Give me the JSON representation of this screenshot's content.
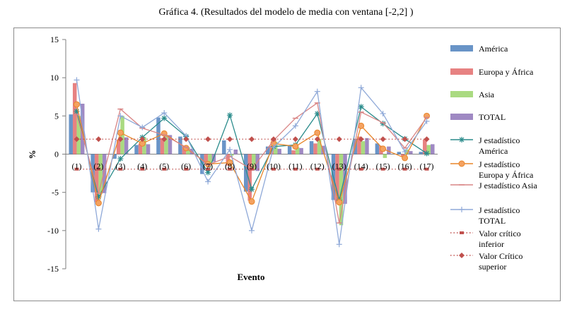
{
  "chart_data": {
    "type": "bar",
    "title": "Gráfica 4. (Resultados del modelo de media con ventana [-2,2] )",
    "xlabel": "Evento",
    "ylabel": "%",
    "ylim": [
      -15,
      15
    ],
    "yticks": [
      15,
      10,
      5,
      0,
      -5,
      -10,
      -15
    ],
    "grid": false,
    "legend": "right",
    "categories": [
      "(1)",
      "(2)",
      "(3)",
      "(4)",
      "(5)",
      "(6)",
      "(7)",
      "(8)",
      "(9)",
      "(10)",
      "(11)",
      "(12)",
      "(13)",
      "(14)",
      "(15)",
      "(16)",
      "(17)"
    ],
    "series": [
      {
        "name": "América",
        "kind": "bar",
        "color": "#4f81bd",
        "values": [
          5.2,
          -5.0,
          -0.6,
          1.2,
          4.8,
          2.3,
          -2.6,
          1.8,
          -4.9,
          1.0,
          1.1,
          1.7,
          -6.0,
          2.0,
          1.4,
          0.3,
          0.3
        ]
      },
      {
        "name": "Europa y África",
        "kind": "bar",
        "color": "#e36c6c",
        "values": [
          9.3,
          -6.3,
          1.9,
          1.4,
          2.1,
          1.0,
          -1.2,
          -1.5,
          -6.1,
          1.1,
          0.5,
          1.4,
          -6.3,
          2.3,
          1.1,
          -0.3,
          1.9
        ]
      },
      {
        "name": "Asia",
        "kind": "bar",
        "color": "#9bd36b",
        "values": [
          5.0,
          -5.2,
          5.0,
          2.2,
          2.5,
          0.9,
          -1.2,
          -0.2,
          -2.0,
          1.6,
          0.9,
          2.0,
          -9.3,
          1.7,
          -0.5,
          0.6,
          1.2
        ]
      },
      {
        "name": "TOTAL",
        "kind": "bar",
        "color": "#8e74b8",
        "values": [
          6.6,
          -5.1,
          2.2,
          1.3,
          2.5,
          0.7,
          -1.0,
          0.6,
          -2.2,
          0.7,
          0.8,
          1.1,
          -6.5,
          2.1,
          1.0,
          0.4,
          1.3
        ]
      },
      {
        "name": "J estadístico América",
        "kind": "line",
        "marker": "asterisk",
        "color": "#2b8c8c",
        "values": [
          5.6,
          -5.6,
          -0.6,
          2.2,
          4.7,
          2.3,
          -2.4,
          5.1,
          -4.6,
          1.0,
          1.2,
          5.3,
          -6.0,
          6.2,
          4.0,
          2.0,
          0.1
        ]
      },
      {
        "name": "J estadístico Europa y África",
        "kind": "line",
        "marker": "circle",
        "color": "#e8862a",
        "values": [
          6.5,
          -6.4,
          2.8,
          1.4,
          2.7,
          0.8,
          -1.3,
          -1.1,
          -6.2,
          1.4,
          1.0,
          2.8,
          -6.3,
          3.7,
          0.7,
          -0.5,
          5.0
        ]
      },
      {
        "name": "J estadístico Asia",
        "kind": "line",
        "marker": "dash",
        "color": "#d98585",
        "values": [
          5.2,
          -5.1,
          5.9,
          3.4,
          2.5,
          0.9,
          -1.4,
          -0.3,
          -2.0,
          1.8,
          4.7,
          6.7,
          -9.0,
          5.5,
          4.1,
          0.8,
          4.8
        ]
      },
      {
        "name": "J estadístico TOTAL",
        "kind": "line",
        "marker": "plus",
        "color": "#8fa9d8",
        "values": [
          9.7,
          -9.8,
          5.0,
          3.5,
          5.4,
          2.4,
          -3.6,
          0.6,
          -10.0,
          0.9,
          3.7,
          8.2,
          -11.8,
          8.7,
          5.3,
          0.3,
          4.3
        ]
      },
      {
        "name": "Valor crítico inferior",
        "kind": "critical",
        "marker": "square",
        "color": "#c0504d",
        "values": [
          -1.96,
          -1.96,
          -1.96,
          -1.96,
          -1.96,
          -1.96,
          -1.96,
          -1.96,
          -1.96,
          -1.96,
          -1.96,
          -1.96,
          -1.96,
          -1.96,
          -1.96,
          -1.96,
          -1.96
        ]
      },
      {
        "name": "Valor Crítico superior",
        "kind": "critical",
        "marker": "diamond",
        "color": "#c0504d",
        "values": [
          1.96,
          1.96,
          1.96,
          1.96,
          1.96,
          1.96,
          1.96,
          1.96,
          1.96,
          1.96,
          1.96,
          1.96,
          1.96,
          1.96,
          1.96,
          1.96,
          1.96
        ]
      }
    ],
    "legend_entries": [
      [
        "América"
      ],
      [
        "Europa y África"
      ],
      [
        "Asia"
      ],
      [
        "TOTAL"
      ],
      [
        "J estadístico",
        "América"
      ],
      [
        "J estadístico",
        "Europa y África"
      ],
      [
        "J estadístico Asia"
      ],
      [
        "J estadístico",
        "TOTAL"
      ],
      [
        "Valor crítico",
        "inferior"
      ],
      [
        "Valor Crítico",
        "superior"
      ]
    ]
  }
}
